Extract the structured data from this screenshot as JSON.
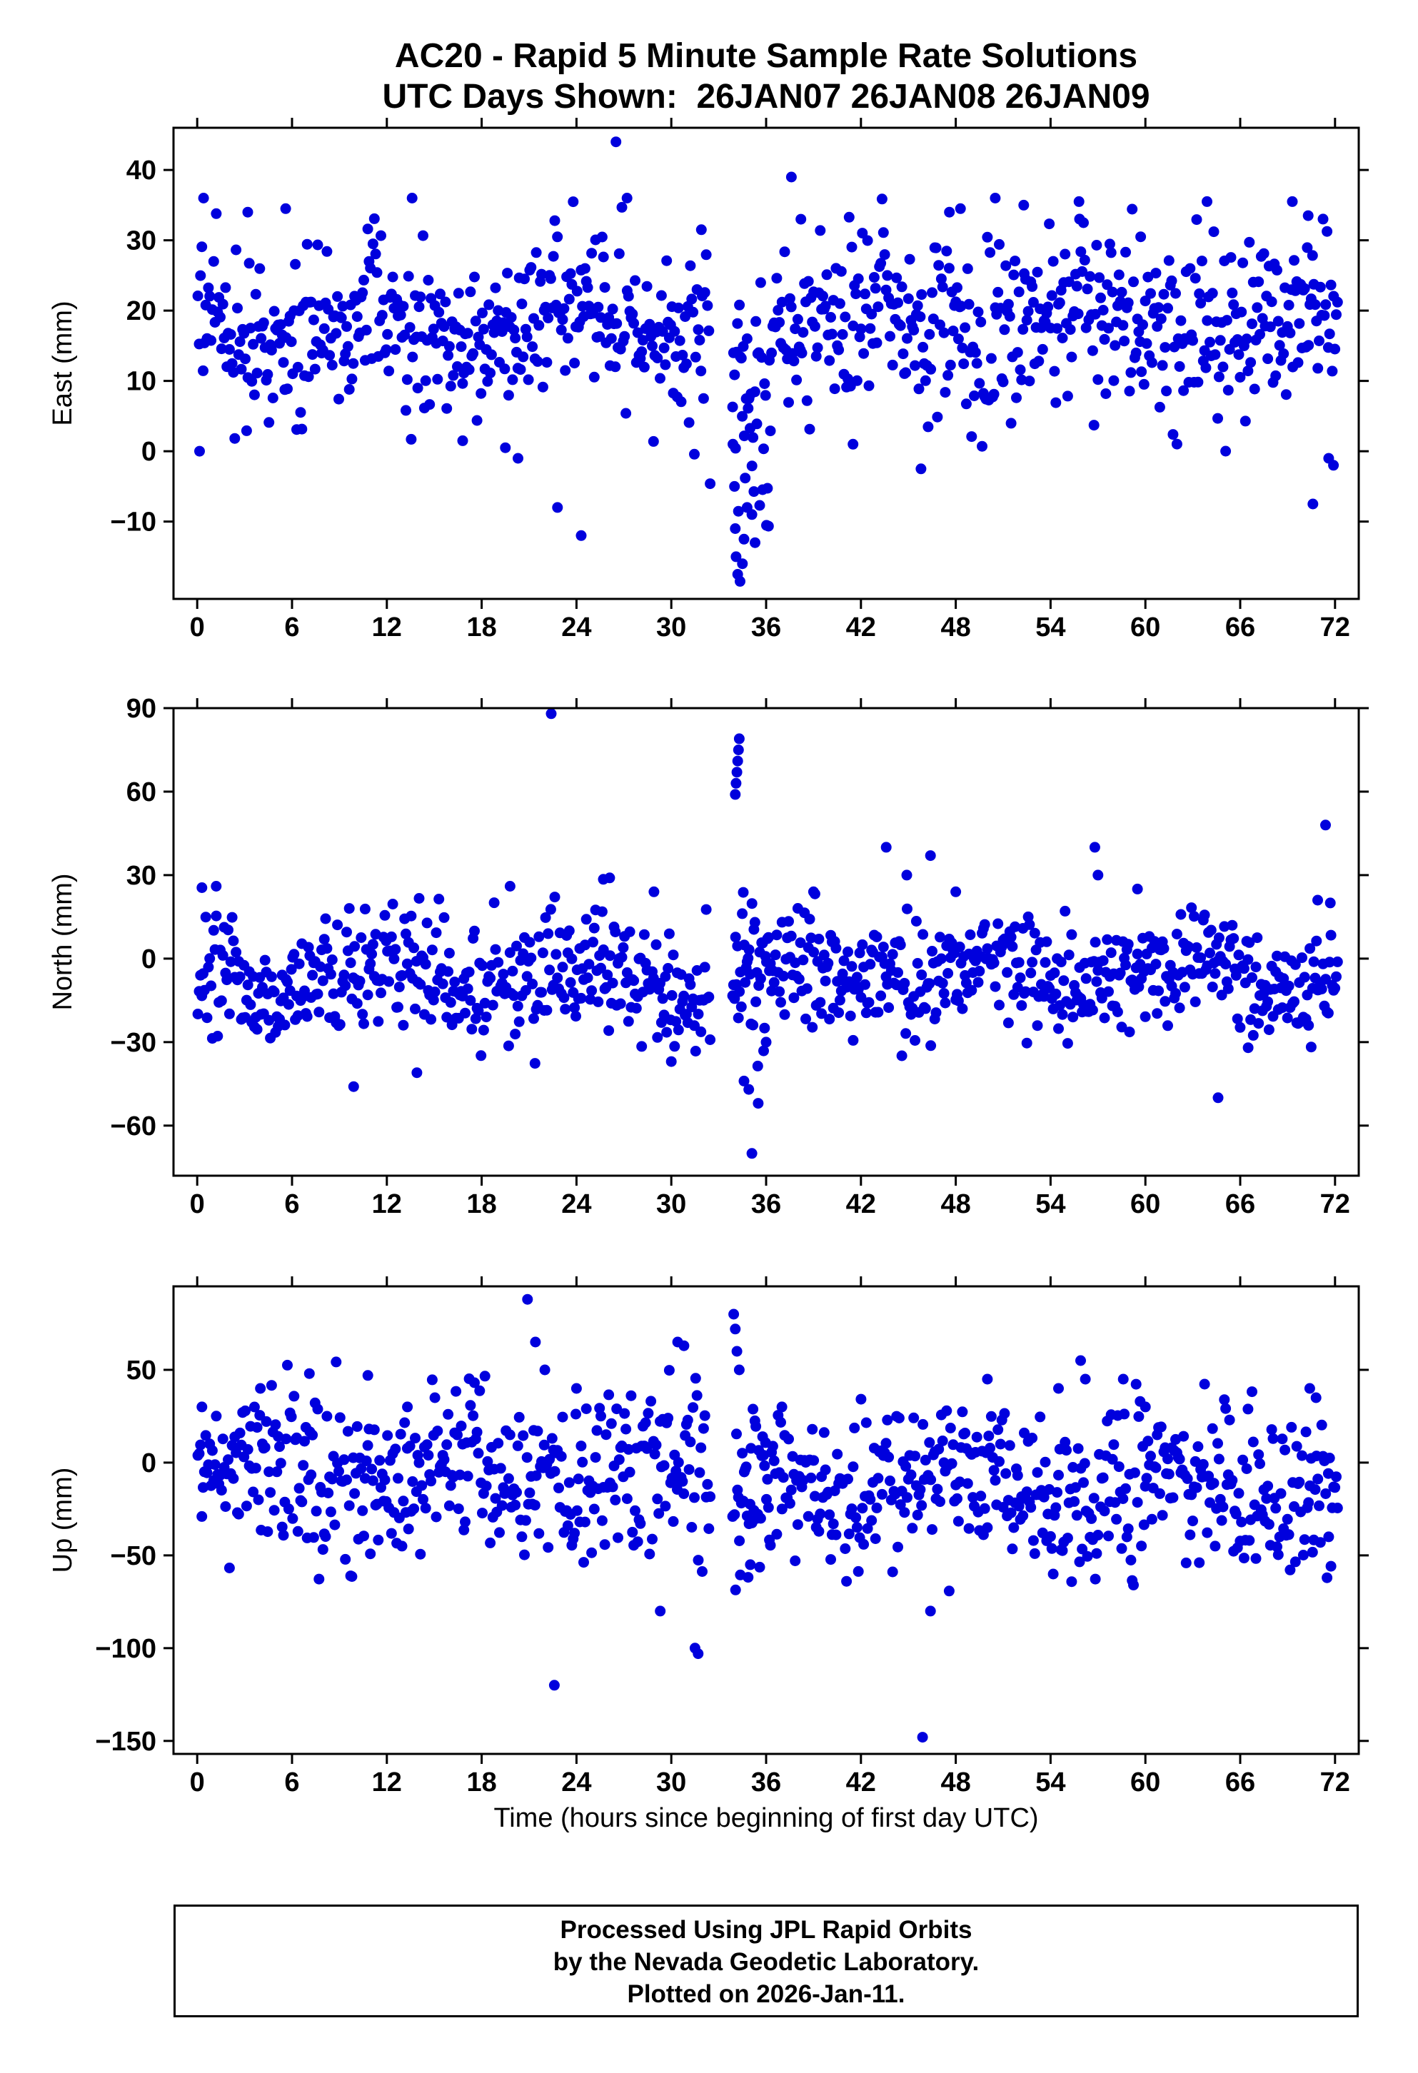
{
  "title": {
    "line1": "AC20 - Rapid 5 Minute Sample Rate Solutions",
    "line2": "UTC Days Shown:  26JAN07 26JAN08 26JAN09"
  },
  "footer": {
    "line1": "Processed Using JPL Rapid Orbits",
    "line2": "by the Nevada Geodetic Laboratory.",
    "line3": "Plotted on 2026-Jan-11."
  },
  "style": {
    "marker_color": "#0000dd",
    "marker_radius": 7.5,
    "axis_color": "#000000",
    "text_color": "#000000",
    "background": "#ffffff"
  },
  "chart_data": [
    {
      "panel": "east",
      "type": "scatter",
      "ylabel": "East (mm)",
      "xlabel": "",
      "xlim": [
        -1.5,
        73.5
      ],
      "ylim": [
        -21,
        46
      ],
      "xticks": [
        0,
        6,
        12,
        18,
        24,
        30,
        36,
        42,
        48,
        54,
        60,
        66,
        72
      ],
      "yticks": [
        -10,
        0,
        10,
        20,
        30,
        40
      ],
      "seed": 7,
      "samples_per_hour": 12,
      "segments": [
        {
          "x_start": 0,
          "x_end": 32.5,
          "mean": 17.5,
          "std": 6,
          "min": -13,
          "max": 36.5
        },
        {
          "x_start": 33.85,
          "x_end": 36.3,
          "n": 40,
          "mean": 6,
          "std": 9,
          "min": -19,
          "max": 30
        },
        {
          "x_start": 36.3,
          "x_end": 72.2,
          "mean": 18,
          "std": 6.5,
          "min": -6,
          "max": 36.5
        }
      ],
      "outliers": [
        [
          0.15,
          0
        ],
        [
          0.4,
          36
        ],
        [
          3.2,
          34
        ],
        [
          5.6,
          34.5
        ],
        [
          13.6,
          36
        ],
        [
          16.8,
          1.5
        ],
        [
          19.5,
          0.5
        ],
        [
          20.3,
          -1
        ],
        [
          22.8,
          -8
        ],
        [
          24.3,
          -12
        ],
        [
          26.5,
          44
        ],
        [
          27.2,
          36
        ],
        [
          31.9,
          31.5
        ],
        [
          33.9,
          1
        ],
        [
          34.0,
          -5
        ],
        [
          34.05,
          -11
        ],
        [
          34.1,
          -15
        ],
        [
          34.2,
          -17.5
        ],
        [
          34.35,
          -18.5
        ],
        [
          34.5,
          -16
        ],
        [
          34.6,
          -12.5
        ],
        [
          34.8,
          -8
        ],
        [
          35.1,
          -9
        ],
        [
          35.3,
          -13
        ],
        [
          37.6,
          39
        ],
        [
          38.2,
          33
        ],
        [
          41.5,
          1
        ],
        [
          45.8,
          -2.5
        ],
        [
          47.6,
          34
        ],
        [
          48.3,
          34.5
        ],
        [
          50.5,
          36
        ],
        [
          52.3,
          35
        ],
        [
          55.8,
          35.5
        ],
        [
          59.7,
          30.5
        ],
        [
          63.9,
          35.5
        ],
        [
          69.3,
          35.5
        ],
        [
          70.3,
          33.5
        ],
        [
          70.6,
          -7.5
        ],
        [
          71.6,
          -1
        ],
        [
          71.9,
          -2
        ]
      ]
    },
    {
      "panel": "north",
      "type": "scatter",
      "ylabel": "North (mm)",
      "xlabel": "",
      "xlim": [
        -1.5,
        73.5
      ],
      "ylim": [
        -78,
        90
      ],
      "xticks": [
        0,
        6,
        12,
        18,
        24,
        30,
        36,
        42,
        48,
        54,
        60,
        66,
        72
      ],
      "yticks": [
        -60,
        -30,
        0,
        30,
        60,
        90
      ],
      "seed": 13,
      "samples_per_hour": 12,
      "segments": [
        {
          "x_start": 0,
          "x_end": 32.5,
          "mean": -8,
          "std": 11,
          "min": -40,
          "max": 29
        },
        {
          "x_start": 33.85,
          "x_end": 36.3,
          "n": 40,
          "mean": -12,
          "std": 14,
          "min": -50,
          "max": 25
        },
        {
          "x_start": 36.3,
          "x_end": 72.2,
          "mean": -5.5,
          "std": 10,
          "min": -35,
          "max": 28
        }
      ],
      "outliers": [
        [
          0.3,
          25.5
        ],
        [
          1.2,
          26
        ],
        [
          9.9,
          -46
        ],
        [
          13.9,
          -41
        ],
        [
          19.8,
          26
        ],
        [
          22.4,
          88
        ],
        [
          25.7,
          28.5
        ],
        [
          26.1,
          29
        ],
        [
          28.9,
          24
        ],
        [
          30.0,
          -37
        ],
        [
          34.05,
          59
        ],
        [
          34.1,
          63
        ],
        [
          34.15,
          67
        ],
        [
          34.2,
          71
        ],
        [
          34.25,
          75
        ],
        [
          34.3,
          79
        ],
        [
          34.6,
          -44
        ],
        [
          34.9,
          -47
        ],
        [
          35.1,
          -70
        ],
        [
          35.5,
          -52
        ],
        [
          36.0,
          -30
        ],
        [
          39.0,
          24
        ],
        [
          43.6,
          40
        ],
        [
          44.9,
          30
        ],
        [
          46.4,
          37
        ],
        [
          48.0,
          24
        ],
        [
          56.8,
          40
        ],
        [
          57.0,
          30
        ],
        [
          59.5,
          25
        ],
        [
          64.6,
          -50
        ],
        [
          66.5,
          -32
        ],
        [
          70.9,
          21
        ],
        [
          71.4,
          48
        ],
        [
          71.7,
          20
        ]
      ]
    },
    {
      "panel": "up",
      "type": "scatter",
      "ylabel": "Up (mm)",
      "xlabel": "Time (hours since beginning of first day UTC)",
      "xlim": [
        -1.5,
        73.5
      ],
      "ylim": [
        -157,
        95
      ],
      "xticks": [
        0,
        6,
        12,
        18,
        24,
        30,
        36,
        42,
        48,
        54,
        60,
        66,
        72
      ],
      "yticks": [
        -150,
        -100,
        -50,
        0,
        50
      ],
      "seed": 29,
      "samples_per_hour": 12,
      "segments": [
        {
          "x_start": 0,
          "x_end": 32.5,
          "mean": -6,
          "std": 24,
          "min": -72,
          "max": 55
        },
        {
          "x_start": 33.85,
          "x_end": 36.3,
          "n": 40,
          "mean": -5,
          "std": 28,
          "min": -70,
          "max": 55
        },
        {
          "x_start": 36.3,
          "x_end": 72.2,
          "mean": -14,
          "std": 22,
          "min": -70,
          "max": 48
        }
      ],
      "outliers": [
        [
          0.3,
          30
        ],
        [
          4.0,
          40
        ],
        [
          7.1,
          48
        ],
        [
          10.8,
          47
        ],
        [
          13.3,
          30
        ],
        [
          20.9,
          88
        ],
        [
          21.4,
          65
        ],
        [
          22.0,
          50
        ],
        [
          22.6,
          -120
        ],
        [
          24.0,
          40
        ],
        [
          29.3,
          -80
        ],
        [
          30.4,
          65
        ],
        [
          30.8,
          63
        ],
        [
          31.5,
          -100
        ],
        [
          31.7,
          -103
        ],
        [
          33.95,
          80
        ],
        [
          34.05,
          72
        ],
        [
          34.15,
          60
        ],
        [
          34.3,
          50
        ],
        [
          35.0,
          -55
        ],
        [
          37.0,
          30
        ],
        [
          45.9,
          -148
        ],
        [
          46.4,
          -80
        ],
        [
          50.0,
          45
        ],
        [
          54.5,
          40
        ],
        [
          55.9,
          55
        ],
        [
          56.2,
          45
        ],
        [
          58.6,
          45
        ],
        [
          60.0,
          30
        ],
        [
          70.4,
          40
        ],
        [
          70.8,
          35
        ],
        [
          71.6,
          -40
        ]
      ]
    }
  ]
}
